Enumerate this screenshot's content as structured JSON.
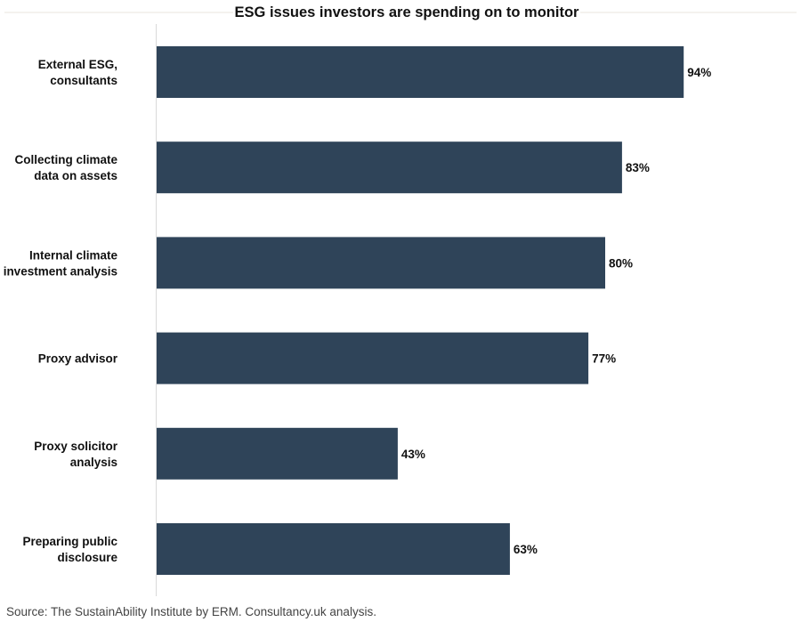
{
  "chart_data": {
    "type": "bar",
    "orientation": "horizontal",
    "title": "ESG issues investors are spending on to monitor",
    "categories": [
      [
        "External ESG,",
        "consultants"
      ],
      [
        "Collecting climate",
        "data on assets"
      ],
      [
        "Internal climate",
        "investment analysis"
      ],
      [
        "Proxy advisor"
      ],
      [
        "Proxy solicitor",
        "analysis"
      ],
      [
        "Preparing public",
        "disclosure"
      ]
    ],
    "values": [
      94,
      83,
      80,
      77,
      43,
      63
    ],
    "value_labels": [
      "94%",
      "83%",
      "80%",
      "77%",
      "43%",
      "63%"
    ],
    "xlim": [
      0,
      100
    ],
    "grid": false,
    "bar_color": "#2f4459",
    "source": "Source: The SustainAbility Institute by ERM. Consultancy.uk analysis."
  }
}
